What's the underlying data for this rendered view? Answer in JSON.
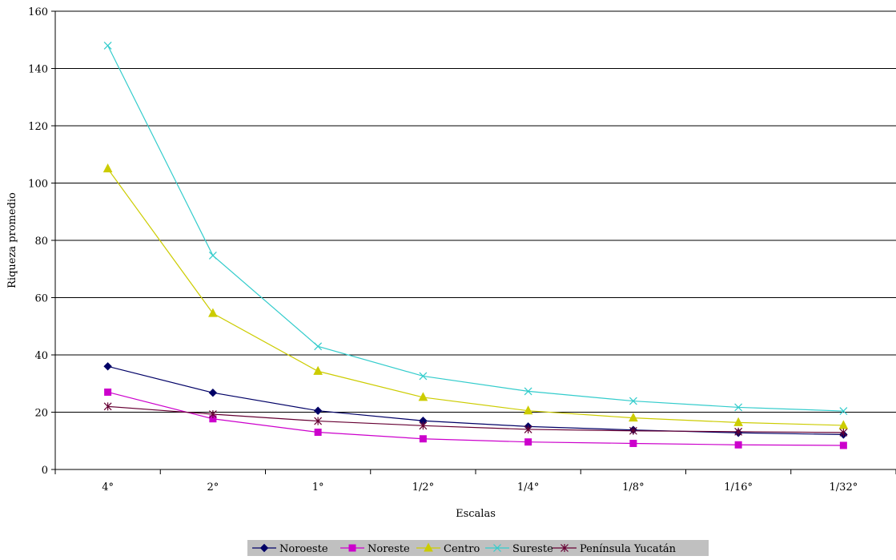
{
  "chart_data": {
    "type": "line",
    "title": "",
    "xlabel": "Escalas",
    "ylabel": "Riqueza promedio",
    "categories": [
      "4°",
      "2°",
      "1°",
      "1/2°",
      "1/4°",
      "1/8°",
      "1/16°",
      "1/32°"
    ],
    "ylim": [
      0,
      160
    ],
    "yticks": [
      0,
      20,
      40,
      60,
      80,
      100,
      120,
      140,
      160
    ],
    "grid": "horizontal",
    "legend_position": "bottom",
    "series": [
      {
        "name": "Noroeste",
        "color": "#000066",
        "marker": "diamond",
        "values": [
          36,
          26.8,
          20.5,
          17,
          15,
          13.8,
          12.8,
          12.2
        ]
      },
      {
        "name": "Noreste",
        "color": "#CC00CC",
        "marker": "square",
        "values": [
          27,
          17.7,
          13,
          10.7,
          9.6,
          9.1,
          8.6,
          8.4
        ]
      },
      {
        "name": "Centro",
        "color": "#CCCC00",
        "marker": "triangle",
        "values": [
          105,
          54.5,
          34.3,
          25.2,
          20.5,
          18,
          16.4,
          15.4
        ]
      },
      {
        "name": "Sureste",
        "color": "#33CCCC",
        "marker": "x",
        "values": [
          148,
          74.7,
          43,
          32.6,
          27.3,
          23.9,
          21.7,
          20.4
        ]
      },
      {
        "name": "Península Yucatán",
        "color": "#660033",
        "marker": "star",
        "values": [
          22,
          19.3,
          16.9,
          15.3,
          14,
          13.5,
          13.2,
          12.9
        ]
      }
    ]
  }
}
